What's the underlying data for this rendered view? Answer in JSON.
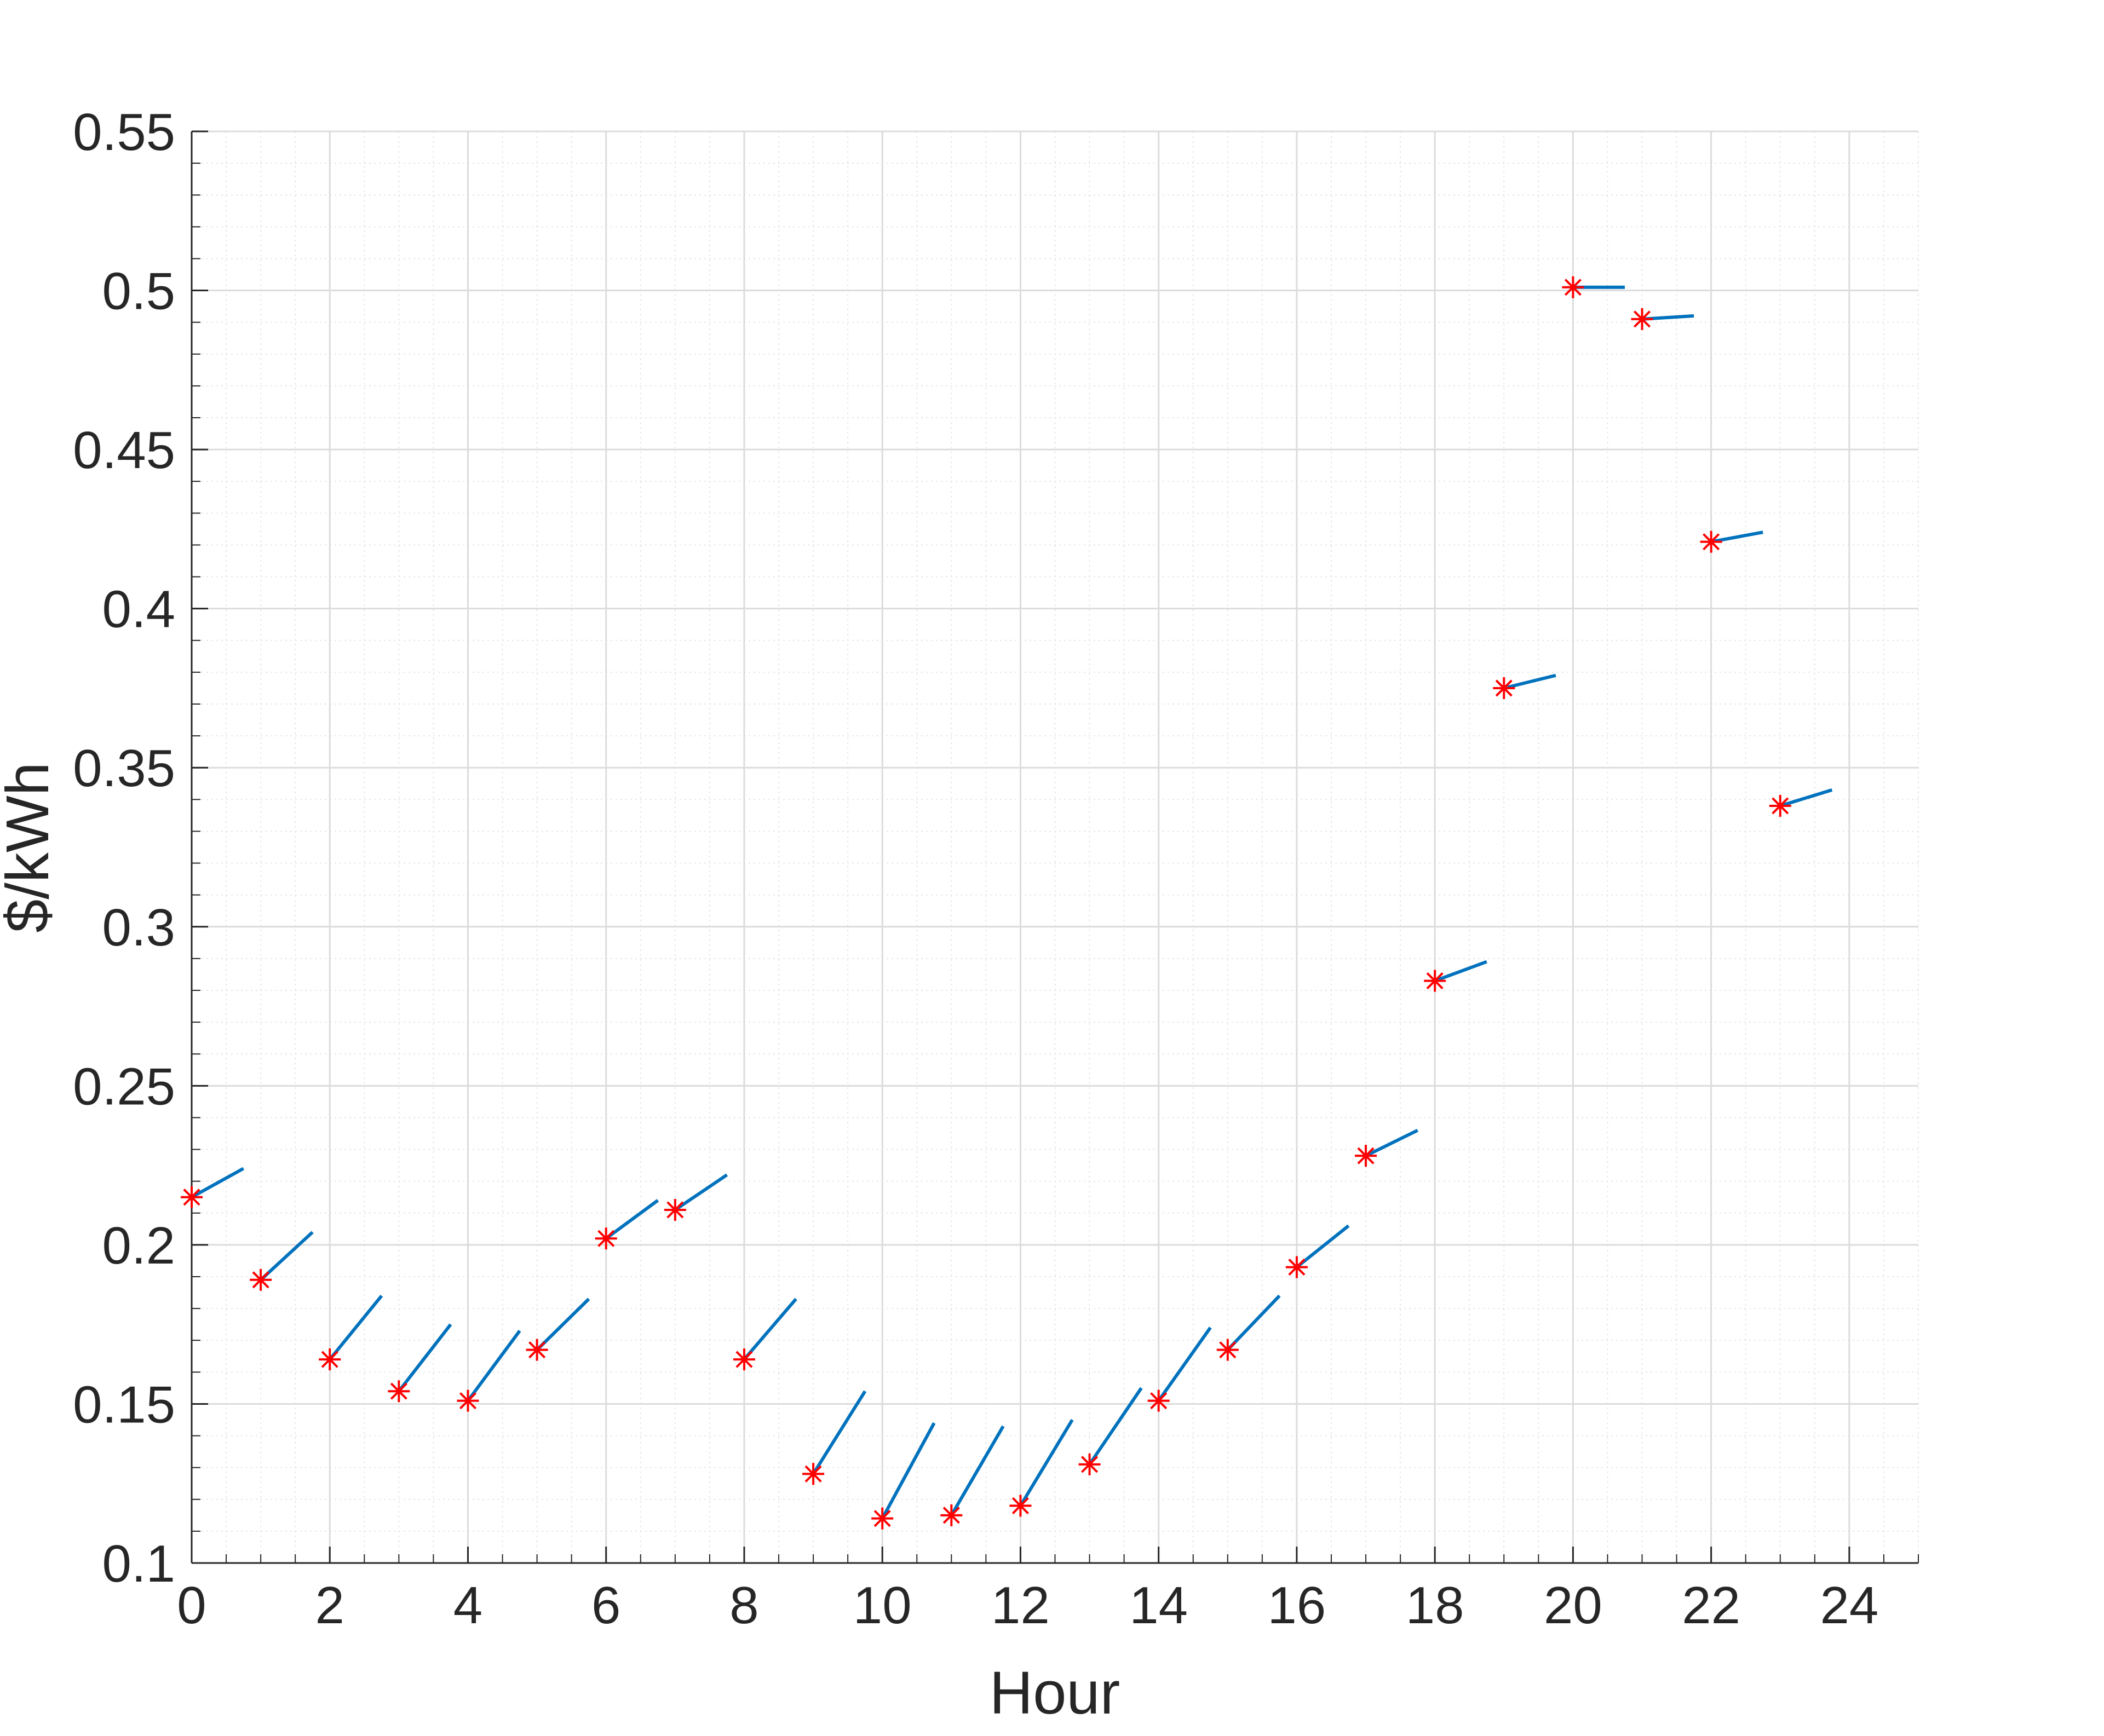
{
  "chart_data": {
    "type": "scatter",
    "title": "",
    "xlabel": "Hour",
    "ylabel": "$/kWh",
    "xlim": [
      0,
      25
    ],
    "ylim": [
      0.1,
      0.55
    ],
    "x_ticks": [
      0,
      2,
      4,
      6,
      8,
      10,
      12,
      14,
      16,
      18,
      20,
      22,
      24
    ],
    "y_ticks": [
      0.1,
      0.15,
      0.2,
      0.25,
      0.3,
      0.35,
      0.4,
      0.45,
      0.5,
      0.55
    ],
    "x_tick_labels": [
      "0",
      "2",
      "4",
      "6",
      "8",
      "10",
      "12",
      "14",
      "16",
      "18",
      "20",
      "22",
      "24"
    ],
    "y_tick_labels": [
      "0.1",
      "0.15",
      "0.2",
      "0.25",
      "0.3",
      "0.35",
      "0.4",
      "0.45",
      "0.5",
      "0.55"
    ],
    "grid": true,
    "minor_grid": true,
    "legend": "none",
    "marker": "asterisk",
    "marker_color": "#ff0000",
    "segment_color": "#0072bd",
    "points": [
      {
        "x": 0,
        "y": 0.215,
        "x_end": 0.75,
        "y_end": 0.224
      },
      {
        "x": 1,
        "y": 0.189,
        "x_end": 1.75,
        "y_end": 0.204
      },
      {
        "x": 2,
        "y": 0.164,
        "x_end": 2.75,
        "y_end": 0.184
      },
      {
        "x": 3,
        "y": 0.154,
        "x_end": 3.75,
        "y_end": 0.175
      },
      {
        "x": 4,
        "y": 0.151,
        "x_end": 4.75,
        "y_end": 0.173
      },
      {
        "x": 5,
        "y": 0.167,
        "x_end": 5.75,
        "y_end": 0.183
      },
      {
        "x": 6,
        "y": 0.202,
        "x_end": 6.75,
        "y_end": 0.214
      },
      {
        "x": 7,
        "y": 0.211,
        "x_end": 7.75,
        "y_end": 0.222
      },
      {
        "x": 8,
        "y": 0.164,
        "x_end": 8.75,
        "y_end": 0.183
      },
      {
        "x": 9,
        "y": 0.128,
        "x_end": 9.75,
        "y_end": 0.154
      },
      {
        "x": 10,
        "y": 0.114,
        "x_end": 10.75,
        "y_end": 0.144
      },
      {
        "x": 11,
        "y": 0.115,
        "x_end": 11.75,
        "y_end": 0.143
      },
      {
        "x": 12,
        "y": 0.118,
        "x_end": 12.75,
        "y_end": 0.145
      },
      {
        "x": 13,
        "y": 0.131,
        "x_end": 13.75,
        "y_end": 0.155
      },
      {
        "x": 14,
        "y": 0.151,
        "x_end": 14.75,
        "y_end": 0.174
      },
      {
        "x": 15,
        "y": 0.167,
        "x_end": 15.75,
        "y_end": 0.184
      },
      {
        "x": 16,
        "y": 0.193,
        "x_end": 16.75,
        "y_end": 0.206
      },
      {
        "x": 17,
        "y": 0.228,
        "x_end": 17.75,
        "y_end": 0.236
      },
      {
        "x": 18,
        "y": 0.283,
        "x_end": 18.75,
        "y_end": 0.289
      },
      {
        "x": 19,
        "y": 0.375,
        "x_end": 19.75,
        "y_end": 0.379
      },
      {
        "x": 20,
        "y": 0.501,
        "x_end": 20.75,
        "y_end": 0.501
      },
      {
        "x": 21,
        "y": 0.491,
        "x_end": 21.75,
        "y_end": 0.492
      },
      {
        "x": 22,
        "y": 0.421,
        "x_end": 22.75,
        "y_end": 0.424
      },
      {
        "x": 23,
        "y": 0.338,
        "x_end": 23.75,
        "y_end": 0.343
      }
    ]
  }
}
